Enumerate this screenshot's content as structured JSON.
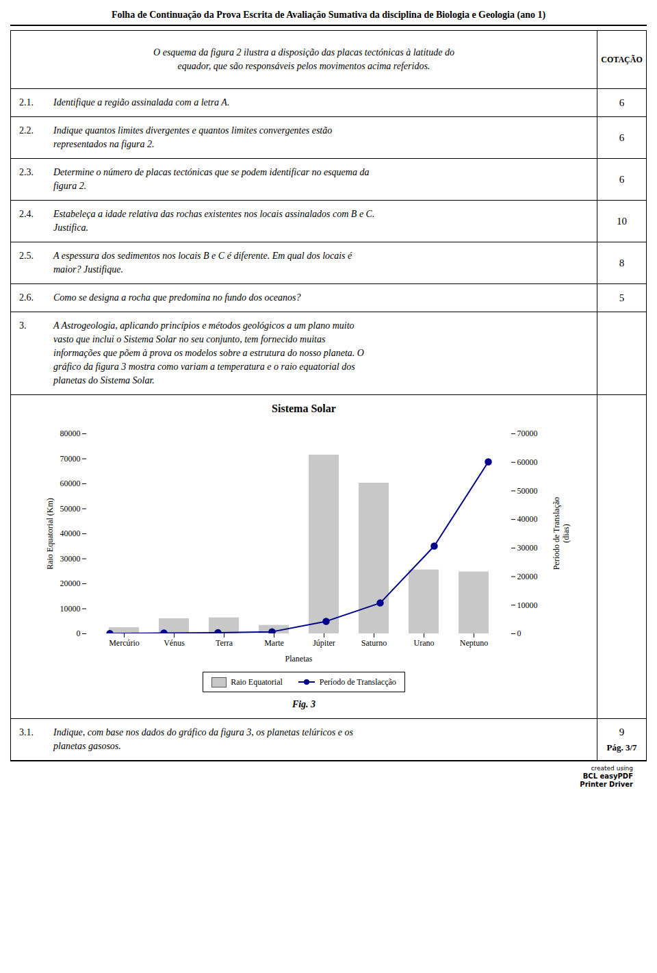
{
  "chart_data": {
    "type": "bar",
    "header": "Folha de Continuação da Prova Escrita de Avaliação Sumativa da disciplina de Biologia e Geologia (ano 1)",
    "annotations": [
      {
        "text": [
          "O esquema da figura 2 ilustra a disposição das placas tectónicas à latitude do",
          "equador, que são responsáveis pelos movimentos acima referidos."
        ],
        "score": [
          "COTAÇÃO"
        ]
      },
      {
        "number": "2.1.",
        "text": [
          "Identifique a região assinalada com a letra A."
        ],
        "score": [
          "6"
        ]
      },
      {
        "number": "2.2.",
        "text": [
          "Indique quantos limites divergentes e quantos limites convergentes estão",
          "representados na figura 2."
        ],
        "score": [
          "6"
        ]
      },
      {
        "number": "2.3.",
        "text": [
          "Determine o número de placas tectónicas que se podem identificar no esquema da",
          "figura 2."
        ],
        "score": [
          "6"
        ]
      },
      {
        "number": "2.4.",
        "text": [
          "Estabeleça a idade relativa das rochas existentes nos locais assinalados com B e C.",
          "Justifica."
        ],
        "score": [
          "10"
        ]
      },
      {
        "number": "2.5.",
        "text": [
          "A espessura dos sedimentos nos locais B e C é diferente. Em qual dos locais é",
          "maior? Justifique."
        ],
        "score": [
          "8"
        ]
      },
      {
        "number": "2.6.",
        "text": [
          "Como se designa a rocha que predomina no fundo dos oceanos?"
        ],
        "score": [
          "5"
        ]
      },
      {
        "number": "3.",
        "text": [
          "A Astrogeologia, aplicando princípios e métodos geológicos a um plano muito",
          "vasto que inclui o Sistema Solar no seu conjunto, tem fornecido muitas",
          "informações que põem à prova os modelos sobre a estrutura do nosso planeta. O",
          "gráfico da figura 3 mostra como variam a temperatura e o raio equatorial dos",
          "planetas do Sistema Solar."
        ]
      }
    ],
    "title": "Sistema Solar",
    "caption": "Fig. 3",
    "notes": [
      {
        "number": "3.1.",
        "text": [
          "Indique, com base nos dados do gráfico da figura 3, os planetas telúricos e os",
          "planetas gasosos."
        ],
        "score": [
          "9",
          "Pág. 3/7"
        ]
      }
    ],
    "watermark": [
      "created using",
      "BCL easyPDF",
      "Printer Driver"
    ],
    "categories": [
      "Mercúrio",
      "Vénus",
      "Terra",
      "Marte",
      "Júpiter",
      "Saturno",
      "Urano",
      "Neptuno"
    ],
    "series": [
      {
        "name": "Raio Equatorial",
        "type": "bar",
        "color": "#c8c8c8",
        "axis": "y",
        "values": [
          2440,
          6052,
          6371,
          3390,
          71492,
          60268,
          25559,
          24764
        ]
      },
      {
        "name": "Período de Translacção",
        "type": "line",
        "color": "#00008B",
        "axis": "y2",
        "marker": "circle",
        "line_style": "solid",
        "values": [
          88,
          225,
          365,
          687,
          4333,
          10759,
          30687,
          60190
        ]
      }
    ],
    "xlabel": "Planetas",
    "ylabel": "Raio Equatorial (Km)",
    "y2label": "Período de Translação\n(dias)",
    "ylim": [
      0,
      80000
    ],
    "yticks": [
      0,
      10000,
      20000,
      30000,
      40000,
      50000,
      60000,
      70000,
      80000
    ],
    "y2lim": [
      0,
      70000
    ],
    "y2ticks": [
      0,
      10000,
      20000,
      30000,
      40000,
      50000,
      60000,
      70000
    ],
    "grid": false,
    "legend": "bottom"
  }
}
